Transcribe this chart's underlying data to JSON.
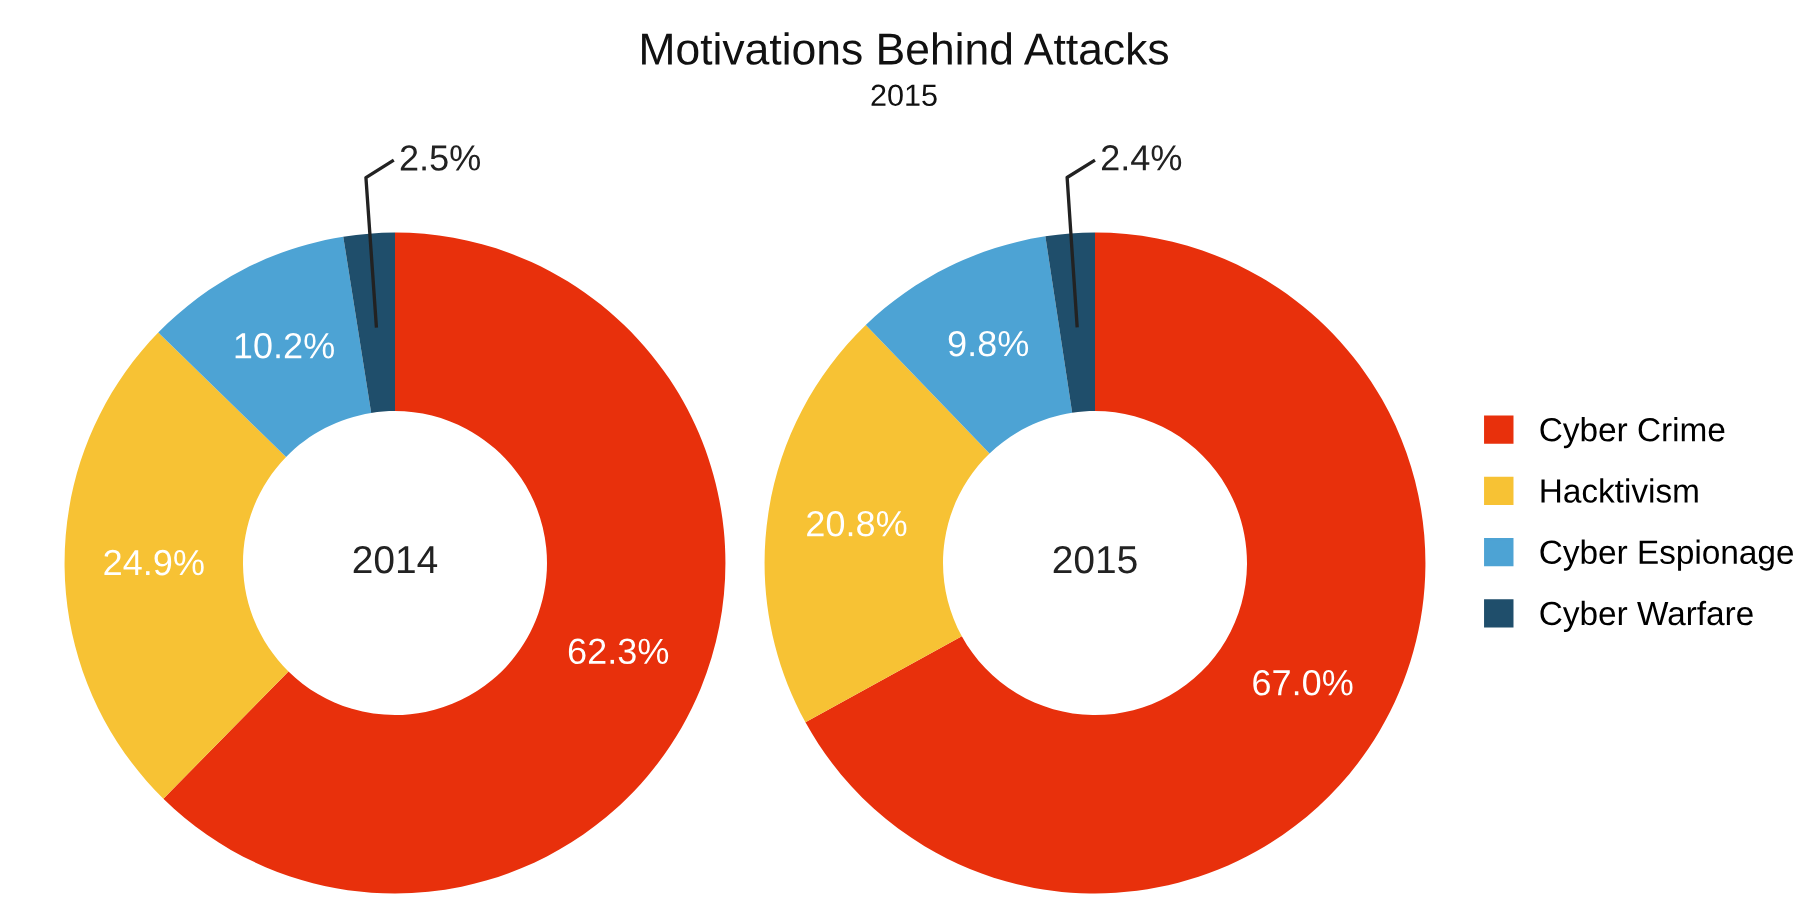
{
  "chart_data": [
    {
      "type": "donut",
      "categories": [
        "Cyber Crime",
        "Hacktivism",
        "Cyber Espionage",
        "Cyber Warfare"
      ],
      "values": [
        62.3,
        24.9,
        10.2,
        2.5
      ],
      "value_labels": [
        "62.3%",
        "24.9%",
        "10.2%",
        "2.5%"
      ],
      "colors": [
        "#e8300c",
        "#f7c234",
        "#4da3d4",
        "#1f4e6b"
      ],
      "annotations": [
        "2014"
      ],
      "legend": "right"
    },
    {
      "type": "donut",
      "title": "Motivations Behind Attacks",
      "subtitle": "2015",
      "categories": [
        null,
        null,
        null,
        null
      ],
      "values": [
        67.0,
        20.8,
        9.8,
        2.4
      ],
      "value_labels": [
        "67.0%",
        "20.8%",
        "9.8%",
        "2.4%"
      ],
      "colors": [
        "#e8300c",
        "#f7c234",
        "#4da3d4",
        "#1f4e6b"
      ],
      "annotations": [
        "2015"
      ]
    }
  ]
}
